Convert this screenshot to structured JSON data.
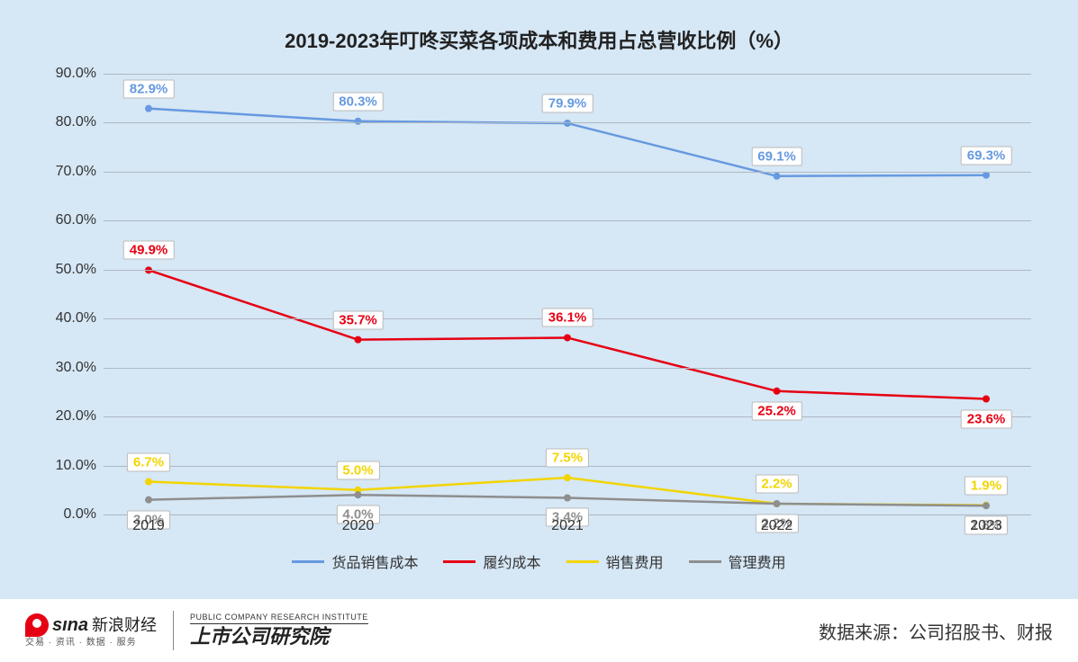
{
  "title": "2019-2023年叮咚买菜各项成本和费用占总营收比例（%）",
  "chart": {
    "type": "line",
    "background_color": "#d6e7f5",
    "grid_color": "#aeb8c2",
    "categories": [
      "2019",
      "2020",
      "2021",
      "2022",
      "2023"
    ],
    "ylim": [
      0,
      90
    ],
    "ytick_step": 10,
    "ytick_format_suffix": ".0%",
    "line_width": 2.5,
    "marker_size": 4,
    "series": [
      {
        "name": "货品销售成本",
        "color": "#6699e0",
        "values": [
          82.9,
          80.3,
          79.9,
          69.1,
          69.3
        ],
        "label_offsets": [
          [
            0,
            -22
          ],
          [
            0,
            -22
          ],
          [
            0,
            -22
          ],
          [
            0,
            -22
          ],
          [
            0,
            -22
          ]
        ]
      },
      {
        "name": "履约成本",
        "color": "#e60013",
        "values": [
          49.9,
          35.7,
          36.1,
          25.2,
          23.6
        ],
        "label_offsets": [
          [
            0,
            -22
          ],
          [
            0,
            -22
          ],
          [
            0,
            -22
          ],
          [
            0,
            22
          ],
          [
            0,
            22
          ]
        ]
      },
      {
        "name": "销售费用",
        "color": "#f2d500",
        "values": [
          6.7,
          5.0,
          7.5,
          2.2,
          1.9
        ],
        "label_offsets": [
          [
            0,
            -22
          ],
          [
            0,
            -22
          ],
          [
            0,
            -22
          ],
          [
            0,
            -22
          ],
          [
            0,
            -22
          ]
        ]
      },
      {
        "name": "管理费用",
        "color": "#8e8e8e",
        "values": [
          3.0,
          4.0,
          3.4,
          2.2,
          1.8
        ],
        "label_offsets": [
          [
            0,
            22
          ],
          [
            0,
            22
          ],
          [
            0,
            22
          ],
          [
            0,
            22
          ],
          [
            0,
            22
          ]
        ]
      }
    ]
  },
  "footer": {
    "sina_brand": "sına",
    "sina_cn": "新浪财经",
    "sina_sub": "交易 · 资讯 · 数据 · 服务",
    "institute_en": "PUBLIC COMPANY RESEARCH INSTITUTE",
    "institute_cn": "上市公司研究院",
    "source": "数据来源：公司招股书、财报"
  }
}
